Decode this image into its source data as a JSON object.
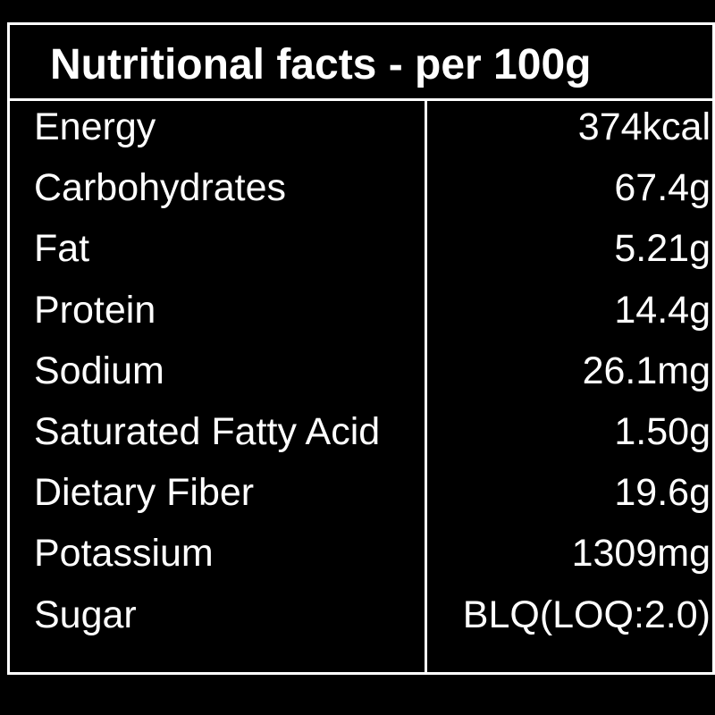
{
  "table": {
    "title": "Nutritional facts - per 100g",
    "rows": [
      [
        "Energy",
        "374kcal"
      ],
      [
        "Carbohydrates",
        "67.4g"
      ],
      [
        "Fat",
        "5.21g"
      ],
      [
        "Protein",
        "14.4g"
      ],
      [
        "Sodium",
        "26.1mg"
      ],
      [
        "Saturated Fatty Acid",
        "1.50g"
      ],
      [
        "Dietary Fiber",
        "19.6g"
      ],
      [
        "Potassium",
        "1309mg"
      ],
      [
        "Sugar",
        "BLQ(LOQ:2.0)"
      ]
    ]
  }
}
